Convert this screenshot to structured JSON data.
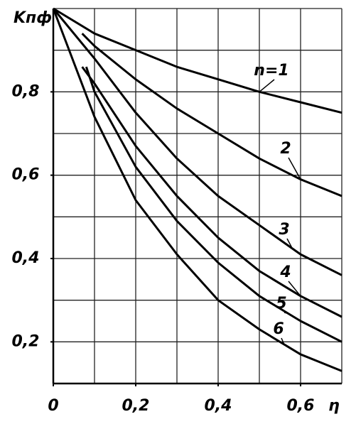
{
  "chart_data": {
    "type": "line",
    "y_label": "Kпф",
    "x_label": "η",
    "xlim": [
      0,
      0.7
    ],
    "ylim": [
      0.1,
      1.0
    ],
    "xticks": [
      0,
      {
        "value": 0.2,
        "label": "0,2"
      },
      {
        "value": 0.4,
        "label": "0,4"
      },
      {
        "value": 0.6,
        "label": "0,6"
      }
    ],
    "yticks": [
      {
        "value": 0.2,
        "label": "0,2"
      },
      {
        "value": 0.4,
        "label": "0,4"
      },
      {
        "value": 0.6,
        "label": "0,6"
      },
      {
        "value": 0.8,
        "label": "0,8"
      }
    ],
    "xgrid": [
      0.1,
      0.2,
      0.3,
      0.4,
      0.5,
      0.6,
      0.7
    ],
    "ygrid": [
      0.2,
      0.3,
      0.4,
      0.5,
      0.6,
      0.7,
      0.8,
      0.9,
      1.0
    ],
    "grid": true,
    "color": "#000000",
    "series": [
      {
        "name": "n=1",
        "x": [
          0,
          0.1,
          0.2,
          0.3,
          0.4,
          0.5,
          0.6,
          0.7
        ],
        "values": [
          1.0,
          0.94,
          0.9,
          0.86,
          0.83,
          0.8,
          0.775,
          0.75
        ]
      },
      {
        "name": "2",
        "x": [
          0.07,
          0.1,
          0.2,
          0.3,
          0.4,
          0.5,
          0.6,
          0.7
        ],
        "values": [
          0.94,
          0.91,
          0.83,
          0.76,
          0.7,
          0.64,
          0.59,
          0.55
        ]
      },
      {
        "name": "3",
        "x": [
          0,
          0.1,
          0.2,
          0.3,
          0.4,
          0.5,
          0.6,
          0.7
        ],
        "values": [
          1.0,
          0.88,
          0.75,
          0.64,
          0.55,
          0.48,
          0.41,
          0.36
        ]
      },
      {
        "name": "4",
        "x": [
          0.07,
          0.1,
          0.2,
          0.3,
          0.4,
          0.5,
          0.6,
          0.7
        ],
        "values": [
          0.86,
          0.82,
          0.67,
          0.55,
          0.45,
          0.37,
          0.31,
          0.26
        ]
      },
      {
        "name": "5",
        "x": [
          0.08,
          0.1,
          0.2,
          0.3,
          0.4,
          0.5,
          0.6,
          0.7
        ],
        "values": [
          0.86,
          0.8,
          0.62,
          0.49,
          0.39,
          0.31,
          0.25,
          0.2
        ]
      },
      {
        "name": "6",
        "x": [
          0,
          0.1,
          0.2,
          0.3,
          0.4,
          0.5,
          0.6,
          0.7
        ],
        "values": [
          1.0,
          0.74,
          0.54,
          0.41,
          0.3,
          0.23,
          0.17,
          0.13
        ]
      }
    ]
  }
}
